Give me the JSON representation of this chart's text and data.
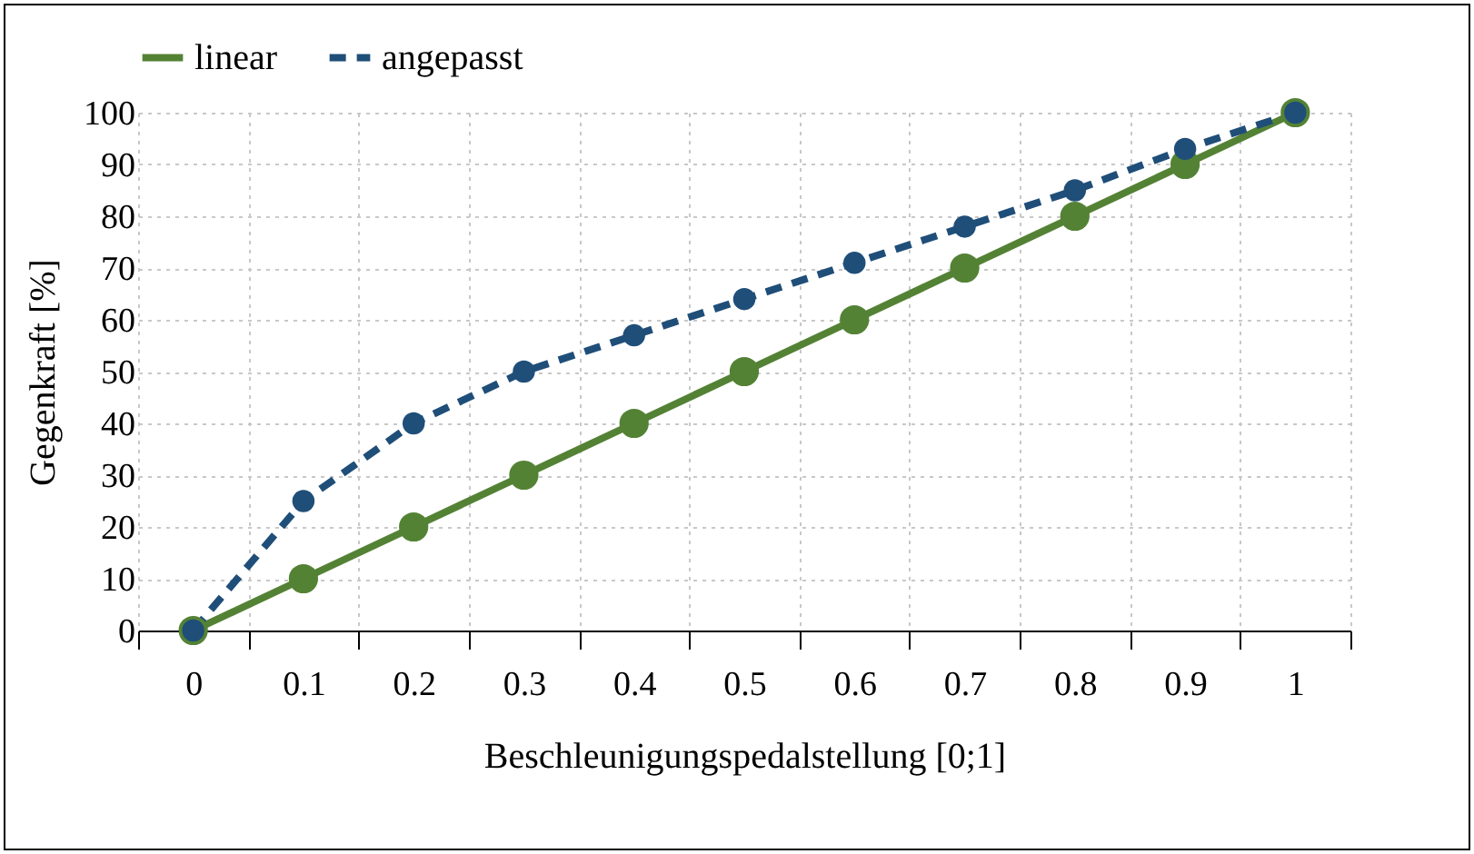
{
  "chart_data": {
    "type": "line",
    "xlabel": "Beschleunigungspedalstellung [0;1]",
    "ylabel": "Gegenkraft [%]",
    "categories": [
      "0",
      "0.1",
      "0.2",
      "0.3",
      "0.4",
      "0.5",
      "0.6",
      "0.7",
      "0.8",
      "0.9",
      "1"
    ],
    "series": [
      {
        "name": "linear",
        "color": "#548235",
        "line_style": "solid",
        "values": [
          0,
          10,
          20,
          30,
          40,
          50,
          60,
          70,
          80,
          90,
          100
        ]
      },
      {
        "name": "angepasst",
        "color": "#1f4e79",
        "line_style": "dashed",
        "values": [
          0,
          25,
          40,
          50,
          57,
          64,
          71,
          78,
          85,
          93,
          100
        ]
      }
    ],
    "ylim": [
      0,
      100
    ],
    "yticks": [
      0,
      10,
      20,
      30,
      40,
      50,
      60,
      70,
      80,
      90,
      100
    ],
    "grid": true,
    "legend": "top",
    "marker": "circle"
  }
}
